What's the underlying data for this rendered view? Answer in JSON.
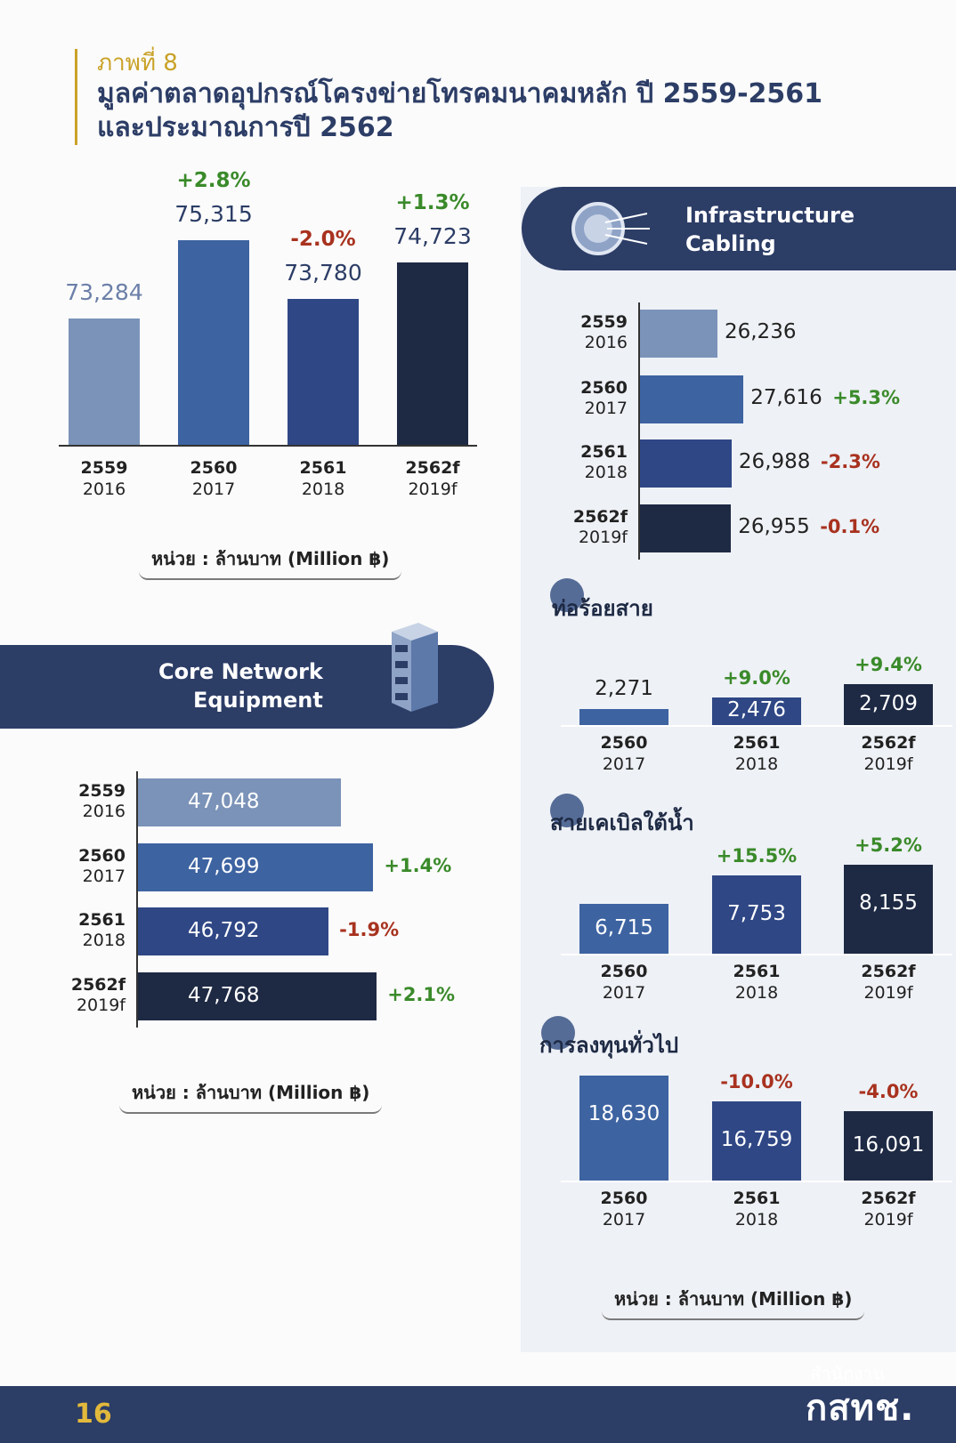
{
  "header": {
    "figure_label": "ภาพที่ 8",
    "title_line1": "มูลค่าตลาดอุปกรณ์โครงข่ายโทรคมนาคมหลัก ปี 2559-2561",
    "title_line2": "และประมาณการปี 2562"
  },
  "unit_label": "หน่วย : ล้านบาท (Million ฿)",
  "page_number": "16",
  "organization": {
    "line1": "สำนักงาน",
    "line2": "กสทช."
  },
  "colors": {
    "navy": "#2c3d66",
    "c1": "#7b93b8",
    "c2": "#3d63a1",
    "c3": "#2f4785",
    "c4": "#1e2a44",
    "pos": "#3a8a2a",
    "neg": "#a8321f",
    "gold": "#c9a227"
  },
  "chart_data": [
    {
      "type": "bar",
      "title": "",
      "categories": [
        [
          "2559",
          "2016"
        ],
        [
          "2560",
          "2017"
        ],
        [
          "2561",
          "2018"
        ],
        [
          "2562f",
          "2019f"
        ]
      ],
      "values": [
        73284,
        75315,
        73780,
        74723
      ],
      "value_labels": [
        "73,284",
        "75,315",
        "73,780",
        "74,723"
      ],
      "growth": [
        "",
        "+2.8%",
        "-2.0%",
        "+1.3%"
      ]
    },
    {
      "type": "bar",
      "orientation": "horizontal",
      "title": "Infrastructure Cabling",
      "title_lines": [
        "Infrastructure",
        "Cabling"
      ],
      "categories": [
        [
          "2559",
          "2016"
        ],
        [
          "2560",
          "2017"
        ],
        [
          "2561",
          "2018"
        ],
        [
          "2562f",
          "2019f"
        ]
      ],
      "values": [
        26236,
        27616,
        26988,
        26955
      ],
      "value_labels": [
        "26,236",
        "27,616",
        "26,988",
        "26,955"
      ],
      "growth": [
        "",
        "+5.3%",
        "-2.3%",
        "-0.1%"
      ]
    },
    {
      "type": "bar",
      "title": "ท่อร้อยสาย",
      "categories": [
        [
          "2560",
          "2017"
        ],
        [
          "2561",
          "2018"
        ],
        [
          "2562f",
          "2019f"
        ]
      ],
      "values": [
        2271,
        2476,
        2709
      ],
      "value_labels": [
        "2,271",
        "2,476",
        "2,709"
      ],
      "growth": [
        "",
        "+9.0%",
        "+9.4%"
      ]
    },
    {
      "type": "bar",
      "title": "สายเคเบิลใต้น้ำ",
      "categories": [
        [
          "2560",
          "2017"
        ],
        [
          "2561",
          "2018"
        ],
        [
          "2562f",
          "2019f"
        ]
      ],
      "values": [
        6715,
        7753,
        8155
      ],
      "value_labels": [
        "6,715",
        "7,753",
        "8,155"
      ],
      "growth": [
        "",
        "+15.5%",
        "+5.2%"
      ]
    },
    {
      "type": "bar",
      "title": "การลงทุนทั่วไป",
      "categories": [
        [
          "2560",
          "2017"
        ],
        [
          "2561",
          "2018"
        ],
        [
          "2562f",
          "2019f"
        ]
      ],
      "values": [
        18630,
        16759,
        16091
      ],
      "value_labels": [
        "18,630",
        "16,759",
        "16,091"
      ],
      "growth": [
        "",
        "-10.0%",
        "-4.0%"
      ]
    },
    {
      "type": "bar",
      "orientation": "horizontal",
      "title": "Core Network Equipment",
      "title_lines": [
        "Core Network",
        "Equipment"
      ],
      "categories": [
        [
          "2559",
          "2016"
        ],
        [
          "2560",
          "2017"
        ],
        [
          "2561",
          "2018"
        ],
        [
          "2562f",
          "2019f"
        ]
      ],
      "values": [
        47048,
        47699,
        46792,
        47768
      ],
      "value_labels": [
        "47,048",
        "47,699",
        "46,792",
        "47,768"
      ],
      "growth": [
        "",
        "+1.4%",
        "-1.9%",
        "+2.1%"
      ]
    }
  ]
}
